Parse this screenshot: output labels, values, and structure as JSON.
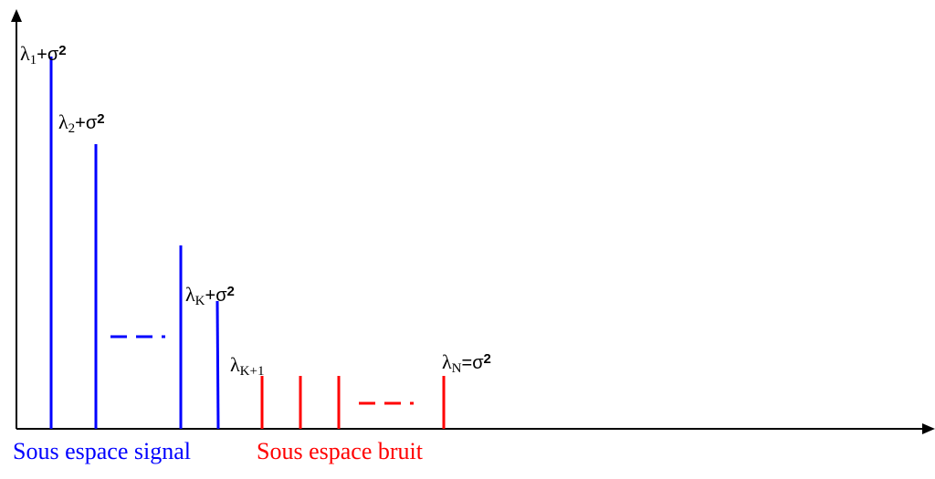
{
  "labels": {
    "l1": {
      "sym": "λ",
      "sub": "1",
      "op": "+",
      "sig": "σ",
      "pow": "2"
    },
    "l2": {
      "sym": "λ",
      "sub": "2",
      "op": "+",
      "sig": "σ",
      "pow": "2"
    },
    "lK": {
      "sym": "λ",
      "sub": "K",
      "op": "+",
      "sig": "σ",
      "pow": "2"
    },
    "lK1": {
      "sym": "λ",
      "sub": "K+1"
    },
    "lN": {
      "sym": "λ",
      "sub": "N",
      "op": "=",
      "sig": "σ",
      "pow": "2"
    }
  },
  "subspaces": {
    "signal": "Sous espace signal",
    "noise": "Sous espace bruit"
  },
  "colors": {
    "signal": "#0000ff",
    "noise": "#ff0000",
    "axis": "#000000"
  }
}
